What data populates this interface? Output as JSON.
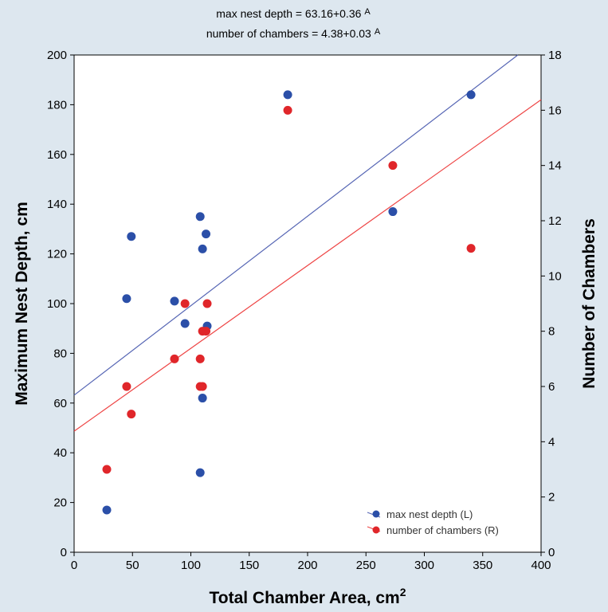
{
  "equations": {
    "line1": "max nest depth = 63.16+0.36",
    "line1_sup": "A",
    "line2": "number of chambers = 4.38+0.03",
    "line2_sup": "A"
  },
  "colors": {
    "background": "#dde7ef",
    "plot_area": "#ffffff",
    "series_blue": "#2b4fa8",
    "series_red": "#e0262a",
    "line_blue": "#5565b4",
    "line_red": "#ee4444"
  },
  "chart_data": {
    "type": "scatter",
    "xlabel": "Total Chamber Area, cm",
    "xlabel_sup": "2",
    "ylabel_left": "Maximum Nest Depth, cm",
    "ylabel_right": "Number of Chambers",
    "xlim": [
      0,
      400
    ],
    "ylim_left": [
      0,
      200
    ],
    "ylim_right": [
      0,
      18
    ],
    "x_ticks": [
      0,
      50,
      100,
      150,
      200,
      250,
      300,
      350,
      400
    ],
    "y_ticks_left": [
      0,
      20,
      40,
      60,
      80,
      100,
      120,
      140,
      160,
      180,
      200
    ],
    "y_ticks_right": [
      0,
      2,
      4,
      6,
      8,
      10,
      12,
      14,
      16,
      18
    ],
    "legend_position": "bottom-right",
    "series": [
      {
        "name": "max nest depth (L)",
        "axis": "left",
        "color": "#2b4fa8",
        "points": [
          {
            "x": 28,
            "y": 17
          },
          {
            "x": 45,
            "y": 102
          },
          {
            "x": 49,
            "y": 127
          },
          {
            "x": 86,
            "y": 101
          },
          {
            "x": 95,
            "y": 92
          },
          {
            "x": 108,
            "y": 135
          },
          {
            "x": 110,
            "y": 122
          },
          {
            "x": 113,
            "y": 128
          },
          {
            "x": 114,
            "y": 91
          },
          {
            "x": 110,
            "y": 62
          },
          {
            "x": 108,
            "y": 32
          },
          {
            "x": 183,
            "y": 184
          },
          {
            "x": 273,
            "y": 137
          },
          {
            "x": 340,
            "y": 184
          }
        ],
        "fit": {
          "intercept": 63.16,
          "slope": 0.36
        }
      },
      {
        "name": "number of chambers (R)",
        "axis": "right",
        "color": "#e0262a",
        "points": [
          {
            "x": 28,
            "y": 3
          },
          {
            "x": 45,
            "y": 6
          },
          {
            "x": 49,
            "y": 5
          },
          {
            "x": 86,
            "y": 7
          },
          {
            "x": 95,
            "y": 9
          },
          {
            "x": 108,
            "y": 7
          },
          {
            "x": 108,
            "y": 6
          },
          {
            "x": 110,
            "y": 6
          },
          {
            "x": 110,
            "y": 8
          },
          {
            "x": 113,
            "y": 8
          },
          {
            "x": 114,
            "y": 9
          },
          {
            "x": 183,
            "y": 16
          },
          {
            "x": 273,
            "y": 14
          },
          {
            "x": 340,
            "y": 11
          }
        ],
        "fit": {
          "intercept": 4.38,
          "slope": 0.03
        }
      }
    ]
  }
}
